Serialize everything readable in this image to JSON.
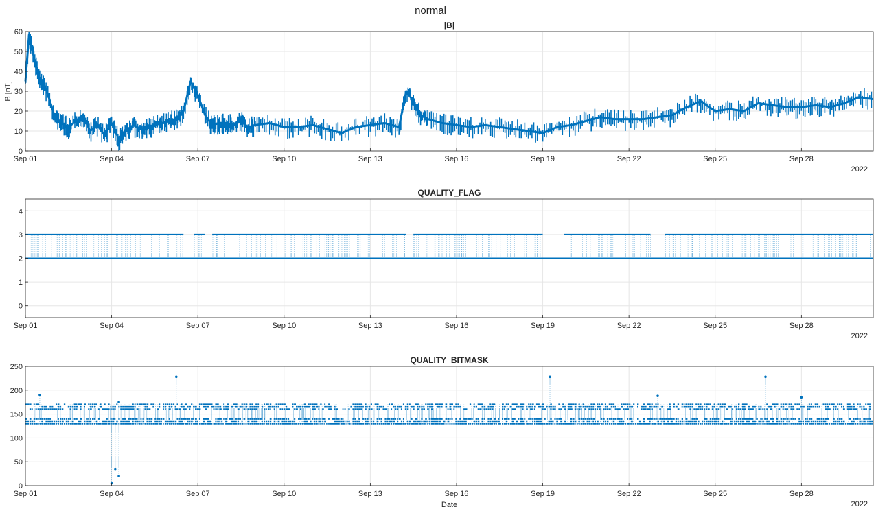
{
  "figure": {
    "title": "normal",
    "background": "#ffffff"
  },
  "style": {
    "series_color": "#0072bd",
    "grid_color": "#e6e6e6",
    "axis_color": "#262626"
  },
  "chart_data": [
    {
      "type": "line",
      "title": "|B|",
      "ylabel": "B [nT]",
      "xlabel": "",
      "year_label": "2022",
      "xlim": [
        "2022-09-01",
        "2022-09-30 12:00"
      ],
      "ylim": [
        0,
        60
      ],
      "yticks": [
        0,
        10,
        20,
        30,
        40,
        50,
        60
      ],
      "xticks": [
        "Sep 01",
        "Sep 04",
        "Sep 07",
        "Sep 10",
        "Sep 13",
        "Sep 16",
        "Sep 19",
        "Sep 22",
        "Sep 25",
        "Sep 28"
      ],
      "grid": true,
      "series": [
        {
          "x": [
            "2022-09-01 00:00",
            "2022-09-01 03:00",
            "2022-09-01 06:00",
            "2022-09-01 09:00",
            "2022-09-01 12:00",
            "2022-09-01 18:00",
            "2022-09-02 00:00",
            "2022-09-02 06:00",
            "2022-09-02 12:00",
            "2022-09-02 18:00",
            "2022-09-03 00:00",
            "2022-09-03 06:00",
            "2022-09-03 12:00",
            "2022-09-03 18:00",
            "2022-09-04 00:00",
            "2022-09-04 06:00",
            "2022-09-04 12:00",
            "2022-09-04 18:00",
            "2022-09-05 00:00",
            "2022-09-05 06:00",
            "2022-09-05 12:00",
            "2022-09-05 18:00",
            "2022-09-06 00:00",
            "2022-09-06 06:00",
            "2022-09-06 12:00",
            "2022-09-06 18:00",
            "2022-09-07 00:00",
            "2022-09-07 06:00",
            "2022-09-07 12:00",
            "2022-09-07 18:00",
            "2022-09-08 00:00",
            "2022-09-08 06:00",
            "2022-09-08 12:00",
            "2022-09-08 18:00",
            "2022-09-09 00:00",
            "2022-09-09 12:00",
            "2022-09-10 00:00",
            "2022-09-10 12:00",
            "2022-09-11 00:00",
            "2022-09-11 12:00",
            "2022-09-12 00:00",
            "2022-09-12 12:00",
            "2022-09-13 00:00",
            "2022-09-13 12:00",
            "2022-09-14 00:00",
            "2022-09-14 06:00",
            "2022-09-14 12:00",
            "2022-09-14 18:00",
            "2022-09-15 00:00",
            "2022-09-15 12:00",
            "2022-09-16 00:00",
            "2022-09-16 12:00",
            "2022-09-17 00:00",
            "2022-09-17 12:00",
            "2022-09-18 00:00",
            "2022-09-18 12:00",
            "2022-09-19 00:00",
            "2022-09-19 12:00",
            "2022-09-20 00:00",
            "2022-09-20 12:00",
            "2022-09-21 00:00",
            "2022-09-21 12:00",
            "2022-09-22 00:00",
            "2022-09-22 12:00",
            "2022-09-23 00:00",
            "2022-09-23 12:00",
            "2022-09-24 00:00",
            "2022-09-24 12:00",
            "2022-09-25 00:00",
            "2022-09-25 12:00",
            "2022-09-26 00:00",
            "2022-09-26 12:00",
            "2022-09-27 00:00",
            "2022-09-27 12:00",
            "2022-09-28 00:00",
            "2022-09-28 12:00",
            "2022-09-29 00:00",
            "2022-09-29 12:00",
            "2022-09-30 00:00",
            "2022-09-30 12:00"
          ],
          "y": [
            35,
            58,
            50,
            42,
            36,
            30,
            18,
            14,
            12,
            15,
            18,
            10,
            13,
            8,
            14,
            6,
            10,
            13,
            11,
            12,
            13,
            14,
            15,
            16,
            20,
            35,
            28,
            18,
            13,
            14,
            14,
            13,
            15,
            12,
            13,
            14,
            12,
            12,
            13,
            11,
            9,
            12,
            13,
            14,
            12,
            30,
            25,
            18,
            16,
            14,
            13,
            12,
            13,
            12,
            11,
            10,
            9,
            12,
            13,
            15,
            17,
            16,
            16,
            16,
            17,
            18,
            22,
            25,
            20,
            21,
            20,
            24,
            23,
            22,
            22,
            23,
            22,
            24,
            27,
            26
          ]
        }
      ]
    },
    {
      "type": "scatter",
      "title": "QUALITY_FLAG",
      "ylabel": "",
      "xlabel": "",
      "year_label": "2022",
      "xlim": [
        "2022-09-01",
        "2022-09-30 12:00"
      ],
      "ylim": [
        -0.5,
        4.5
      ],
      "yticks": [
        0,
        1,
        2,
        3,
        4
      ],
      "xticks": [
        "Sep 01",
        "Sep 04",
        "Sep 07",
        "Sep 10",
        "Sep 13",
        "Sep 16",
        "Sep 19",
        "Sep 22",
        "Sep 25",
        "Sep 28"
      ],
      "grid": true,
      "series": [
        {
          "levels": [
            2,
            3
          ],
          "value3_intervals": [
            [
              "2022-09-01 00:00",
              "2022-09-06 12:00"
            ],
            [
              "2022-09-06 21:00",
              "2022-09-07 06:00"
            ],
            [
              "2022-09-07 12:00",
              "2022-09-14 06:00"
            ],
            [
              "2022-09-14 12:00",
              "2022-09-19 00:00"
            ],
            [
              "2022-09-19 18:00",
              "2022-09-22 18:00"
            ],
            [
              "2022-09-23 06:00",
              "2022-09-30 12:00"
            ]
          ]
        }
      ]
    },
    {
      "type": "scatter",
      "title": "QUALITY_BITMASK",
      "ylabel": "",
      "xlabel": "Date",
      "year_label": "2022",
      "xlim": [
        "2022-09-01",
        "2022-09-30 12:00"
      ],
      "ylim": [
        0,
        250
      ],
      "yticks": [
        0,
        50,
        100,
        150,
        200,
        250
      ],
      "xticks": [
        "Sep 01",
        "Sep 04",
        "Sep 07",
        "Sep 10",
        "Sep 13",
        "Sep 16",
        "Sep 19",
        "Sep 22",
        "Sep 25",
        "Sep 28"
      ],
      "grid": true,
      "series": [
        {
          "levels": [
            130,
            135,
            140,
            160,
            165,
            170
          ],
          "outliers": [
            {
              "x": "2022-09-01 12:00",
              "y": 190
            },
            {
              "x": "2022-09-04 00:00",
              "y": 5
            },
            {
              "x": "2022-09-04 03:00",
              "y": 35
            },
            {
              "x": "2022-09-04 06:00",
              "y": 20
            },
            {
              "x": "2022-09-04 06:00",
              "y": 175
            },
            {
              "x": "2022-09-06 06:00",
              "y": 228
            },
            {
              "x": "2022-09-19 06:00",
              "y": 228
            },
            {
              "x": "2022-09-23 00:00",
              "y": 188
            },
            {
              "x": "2022-09-26 18:00",
              "y": 228
            },
            {
              "x": "2022-09-28 00:00",
              "y": 185
            }
          ]
        }
      ]
    }
  ]
}
